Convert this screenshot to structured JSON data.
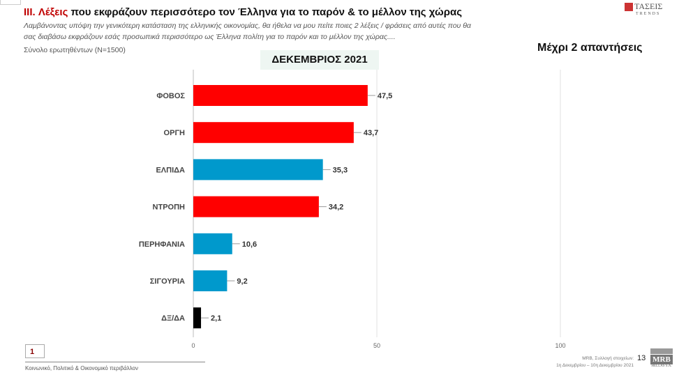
{
  "header": {
    "title_prefix": "III. Λέξεις",
    "title_rest": " που εκφράζουν περισσότερο τον Έλληνα για το παρόν & το μέλλον της χώρας",
    "question_line1": "Λαμβάνοντας υπόψη την γενικότερη κατάσταση της ελληνικής οικονομίας, θα ήθελα να μου πείτε ποιες 2  λέξεις / φράσεις από αυτές που θα",
    "question_line2": "σας διαβάσω εκφράζουν εσάς προσωπικά περισσότερο ως Έλληνα πολίτη για το παρόν και το μέλλον της χώρας....",
    "base": "Σύνολο ερωτηθέντων (N=1500)",
    "period": "ΔΕΚΕΜΒΡΙΟΣ 2021",
    "max_answers": "Μέχρι 2 απαντήσεις",
    "logo": "ΤΑΣΕΙΣ",
    "logo_sub": "TRENDS"
  },
  "chart_data": {
    "type": "bar",
    "orientation": "horizontal",
    "categories": [
      "ΦΟΒΟΣ",
      "ΟΡΓΗ",
      "ΕΛΠΙΔΑ",
      "ΝΤΡΟΠΗ",
      "ΠΕΡΗΦΑΝΙΑ",
      "ΣΙΓΟΥΡΙΑ",
      "ΔΞ/ΔΑ"
    ],
    "values": [
      47.5,
      43.7,
      35.3,
      34.2,
      10.6,
      9.2,
      2.1
    ],
    "value_labels": [
      "47,5",
      "43,7",
      "35,3",
      "34,2",
      "10,6",
      "9,2",
      "2,1"
    ],
    "colors": [
      "#ff0000",
      "#ff0000",
      "#0099cc",
      "#ff0000",
      "#0099cc",
      "#0099cc",
      "#000000"
    ],
    "xlim": [
      0,
      100
    ],
    "ticks": [
      0,
      50,
      100
    ],
    "tick_labels": [
      "0",
      "50",
      "100"
    ],
    "grid": true
  },
  "footer": {
    "page_box": "1",
    "section": "Κοινωνικό, Πολιτικό & Οικονομικό περιβάλλον",
    "source_line1": "MRB, Συλλογή στοιχείων:",
    "source_line2": "1η Δεκεμβρίου – 10η Δεκεμβρίου 2021",
    "page_number": "13",
    "mrb_logo": "MRB",
    "mrb_sub": "HELLAS S.A."
  }
}
